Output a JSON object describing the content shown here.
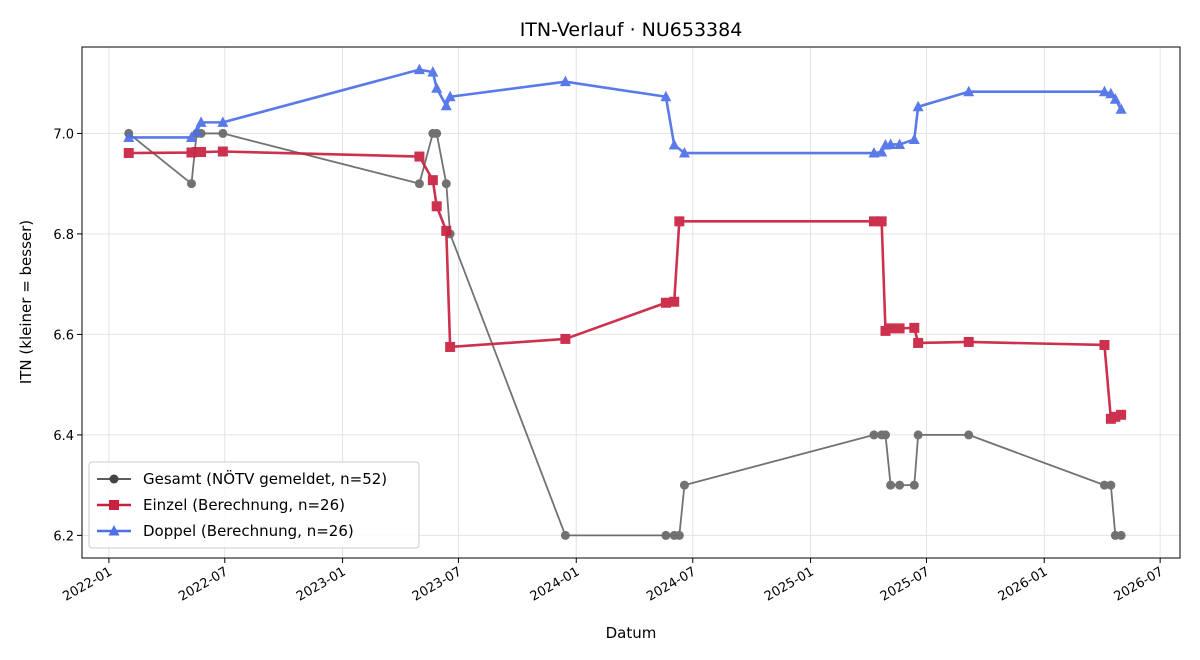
{
  "chart_data": {
    "type": "line",
    "title": "ITN-Verlauf · NU653384",
    "xlabel": "Datum",
    "ylabel": "ITN  (kleiner = besser)",
    "x_ticks": [
      "2022-01",
      "2022-07",
      "2023-01",
      "2023-07",
      "2024-01",
      "2024-07",
      "2025-01",
      "2025-07",
      "2026-01",
      "2026-07"
    ],
    "y_ticks": [
      6.2,
      6.4,
      6.6,
      6.8,
      7.0
    ],
    "xlim": [
      "2021-11-20",
      "2026-08-01"
    ],
    "ylim": [
      6.155,
      7.172
    ],
    "grid": true,
    "legend_position": "lower-left",
    "series": [
      {
        "name": "Gesamt (NÖTV gemeldet, n=52)",
        "color": "#444444",
        "marker": "circle",
        "points": [
          [
            "2022-02-01",
            7.0
          ],
          [
            "2022-05-10",
            6.9
          ],
          [
            "2022-05-18",
            7.0
          ],
          [
            "2022-05-25",
            7.0
          ],
          [
            "2022-06-28",
            7.0
          ],
          [
            "2023-05-01",
            6.9
          ],
          [
            "2023-05-22",
            7.0
          ],
          [
            "2023-05-28",
            7.0
          ],
          [
            "2023-06-12",
            6.9
          ],
          [
            "2023-06-18",
            6.8
          ],
          [
            "2023-12-15",
            6.2
          ],
          [
            "2024-05-20",
            6.2
          ],
          [
            "2024-06-02",
            6.2
          ],
          [
            "2024-06-10",
            6.2
          ],
          [
            "2024-06-18",
            6.3
          ],
          [
            "2025-04-10",
            6.4
          ],
          [
            "2025-04-22",
            6.4
          ],
          [
            "2025-04-28",
            6.4
          ],
          [
            "2025-05-06",
            6.3
          ],
          [
            "2025-05-20",
            6.3
          ],
          [
            "2025-06-12",
            6.3
          ],
          [
            "2025-06-18",
            6.4
          ],
          [
            "2025-09-05",
            6.4
          ],
          [
            "2026-04-05",
            6.3
          ],
          [
            "2026-04-15",
            6.3
          ],
          [
            "2026-04-22",
            6.2
          ],
          [
            "2026-05-01",
            6.2
          ]
        ]
      },
      {
        "name": "Einzel (Berechnung, n=26)",
        "color": "#c8203f",
        "marker": "square",
        "points": [
          [
            "2022-02-01",
            6.961
          ],
          [
            "2022-05-10",
            6.962
          ],
          [
            "2022-05-18",
            6.963
          ],
          [
            "2022-05-25",
            6.963
          ],
          [
            "2022-06-28",
            6.964
          ],
          [
            "2023-05-01",
            6.954
          ],
          [
            "2023-05-22",
            6.907
          ],
          [
            "2023-05-28",
            6.855
          ],
          [
            "2023-06-12",
            6.806
          ],
          [
            "2023-06-18",
            6.575
          ],
          [
            "2023-12-15",
            6.591
          ],
          [
            "2024-05-20",
            6.663
          ],
          [
            "2024-06-02",
            6.665
          ],
          [
            "2024-06-10",
            6.825
          ],
          [
            "2025-04-10",
            6.825
          ],
          [
            "2025-04-22",
            6.825
          ],
          [
            "2025-04-28",
            6.607
          ],
          [
            "2025-05-06",
            6.612
          ],
          [
            "2025-05-20",
            6.612
          ],
          [
            "2025-06-12",
            6.613
          ],
          [
            "2025-06-18",
            6.583
          ],
          [
            "2025-09-05",
            6.585
          ],
          [
            "2026-04-05",
            6.579
          ],
          [
            "2026-04-15",
            6.432
          ],
          [
            "2026-04-22",
            6.436
          ],
          [
            "2026-05-01",
            6.44
          ]
        ]
      },
      {
        "name": "Doppel (Berechnung, n=26)",
        "color": "#4d6fe8",
        "marker": "triangle",
        "points": [
          [
            "2022-02-01",
            6.992
          ],
          [
            "2022-05-10",
            6.992
          ],
          [
            "2022-05-18",
            7.003
          ],
          [
            "2022-05-25",
            7.022
          ],
          [
            "2022-06-28",
            7.022
          ],
          [
            "2023-05-01",
            7.127
          ],
          [
            "2023-05-22",
            7.122
          ],
          [
            "2023-05-28",
            7.09
          ],
          [
            "2023-06-12",
            7.055
          ],
          [
            "2023-06-18",
            7.073
          ],
          [
            "2023-12-15",
            7.103
          ],
          [
            "2024-05-20",
            7.073
          ],
          [
            "2024-06-02",
            6.977
          ],
          [
            "2024-06-18",
            6.961
          ],
          [
            "2025-04-10",
            6.961
          ],
          [
            "2025-04-22",
            6.963
          ],
          [
            "2025-04-28",
            6.977
          ],
          [
            "2025-05-06",
            6.978
          ],
          [
            "2025-05-20",
            6.978
          ],
          [
            "2025-06-12",
            6.988
          ],
          [
            "2025-06-18",
            7.053
          ],
          [
            "2025-09-05",
            7.083
          ],
          [
            "2026-04-05",
            7.083
          ],
          [
            "2026-04-15",
            7.079
          ],
          [
            "2026-04-22",
            7.068
          ],
          [
            "2026-05-01",
            7.048
          ]
        ]
      }
    ]
  }
}
